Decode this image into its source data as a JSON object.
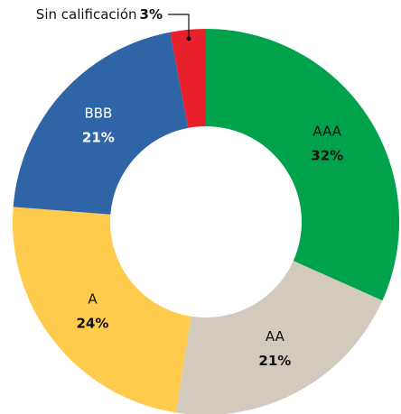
{
  "chart_data": {
    "type": "donut",
    "categories": [
      "AAA",
      "AA",
      "A",
      "BBB",
      "Sin calificación"
    ],
    "values": [
      32,
      21,
      24,
      21,
      3
    ],
    "value_labels": [
      "32%",
      "21%",
      "24%",
      "21%",
      "3%"
    ],
    "colors": [
      "#00a24b",
      "#d3c9bc",
      "#ffcb4c",
      "#2f64a7",
      "#e8202b"
    ],
    "label_colors": [
      "#111111",
      "#111111",
      "#111111",
      "#ffffff",
      "#111111"
    ]
  }
}
